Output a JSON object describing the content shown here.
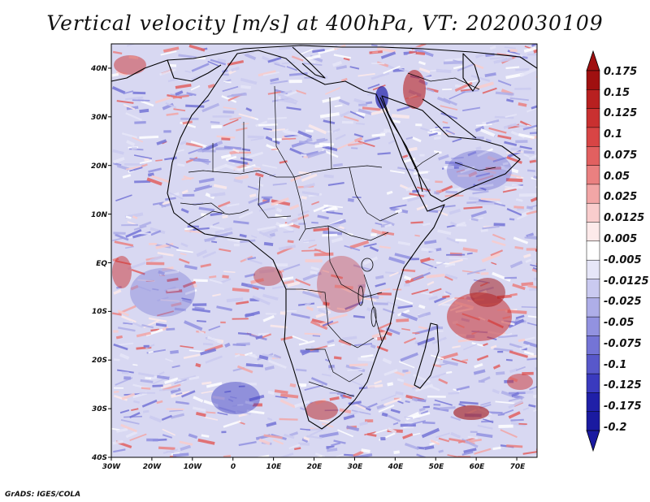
{
  "title": "Vertical velocity [m/s] at 400hPa, VT: 2020030109",
  "credit": "GrADS: IGES/COLA",
  "map": {
    "lon_range": [
      -30,
      75
    ],
    "lat_range": [
      -40,
      45
    ],
    "lat_ticks": [
      {
        "value": 40,
        "label": "40N"
      },
      {
        "value": 30,
        "label": "30N"
      },
      {
        "value": 20,
        "label": "20N"
      },
      {
        "value": 10,
        "label": "10N"
      },
      {
        "value": 0,
        "label": "EQ"
      },
      {
        "value": -10,
        "label": "10S"
      },
      {
        "value": -20,
        "label": "20S"
      },
      {
        "value": -30,
        "label": "30S"
      },
      {
        "value": -40,
        "label": "40S"
      }
    ],
    "lon_ticks": [
      {
        "value": -30,
        "label": "30W"
      },
      {
        "value": -20,
        "label": "20W"
      },
      {
        "value": -10,
        "label": "10W"
      },
      {
        "value": 0,
        "label": "0"
      },
      {
        "value": 10,
        "label": "10E"
      },
      {
        "value": 20,
        "label": "20E"
      },
      {
        "value": 30,
        "label": "30E"
      },
      {
        "value": 40,
        "label": "40E"
      },
      {
        "value": 50,
        "label": "50E"
      },
      {
        "value": 60,
        "label": "60E"
      },
      {
        "value": 70,
        "label": "70E"
      }
    ]
  },
  "colorbar": {
    "levels": [
      "0.175",
      "0.15",
      "0.125",
      "0.1",
      "0.075",
      "0.05",
      "0.025",
      "0.0125",
      "0.005",
      "-0.005",
      "-0.0125",
      "-0.025",
      "-0.05",
      "-0.075",
      "-0.1",
      "-0.125",
      "-0.175",
      "-0.2"
    ],
    "colors": [
      "#a01010",
      "#b82020",
      "#c93030",
      "#d84545",
      "#e26060",
      "#ea8080",
      "#f2a6a6",
      "#f9cdcd",
      "#fdeaea",
      "#ffffff",
      "#e6e6f8",
      "#cacaf0",
      "#aeaee8",
      "#9292e0",
      "#7474d6",
      "#5858ca",
      "#3a3abe",
      "#2020a8",
      "#1a1aa0"
    ]
  }
}
